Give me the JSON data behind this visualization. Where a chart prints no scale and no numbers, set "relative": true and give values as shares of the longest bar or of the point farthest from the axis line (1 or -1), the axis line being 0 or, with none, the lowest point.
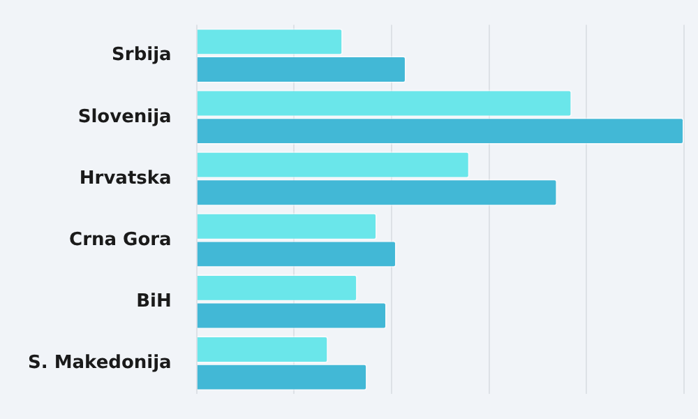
{
  "chart_data": {
    "type": "bar",
    "orientation": "horizontal",
    "relative": true,
    "grid": "x",
    "legend": false,
    "categories": [
      "Srbija",
      "Slovenija",
      "Hrvatska",
      "Crna Gora",
      "BiH",
      "S. Makedonija"
    ],
    "series": [
      {
        "color": "#6ae6ea",
        "values": [
          0.3,
          0.77,
          0.56,
          0.37,
          0.33,
          0.27
        ]
      },
      {
        "color": "#42b8d6",
        "values": [
          0.43,
          1,
          0.74,
          0.41,
          0.39,
          0.35
        ]
      }
    ]
  }
}
